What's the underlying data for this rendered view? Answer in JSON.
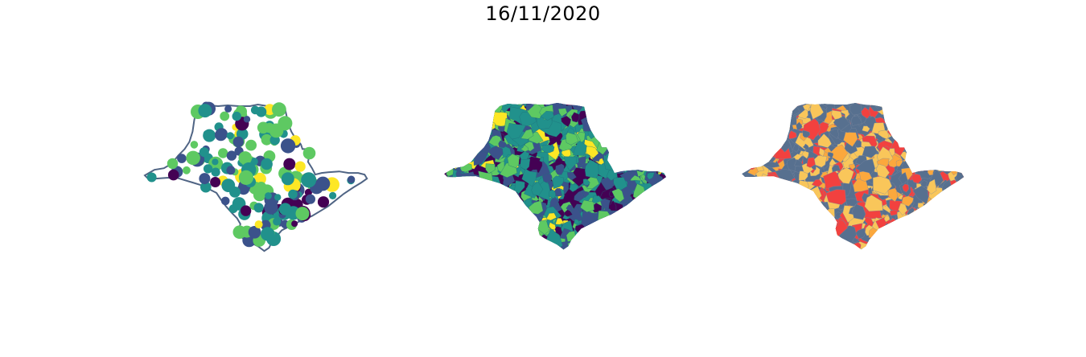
{
  "title": "16/11/2020",
  "colors": {
    "outline": "#4f6484",
    "viridis": [
      "#440154",
      "#3b528b",
      "#21918c",
      "#5ec962",
      "#fde725"
    ],
    "categorical": [
      "#57708f",
      "#f9c65a",
      "#f2413f",
      "#fba83d"
    ]
  },
  "panels": [
    {
      "name": "bubble-map",
      "style": "points on state outline",
      "palette": "viridis"
    },
    {
      "name": "choropleth-map",
      "style": "municipal choropleth",
      "palette": "viridis"
    },
    {
      "name": "category-map",
      "style": "municipal categories",
      "palette": "categorical"
    }
  ]
}
